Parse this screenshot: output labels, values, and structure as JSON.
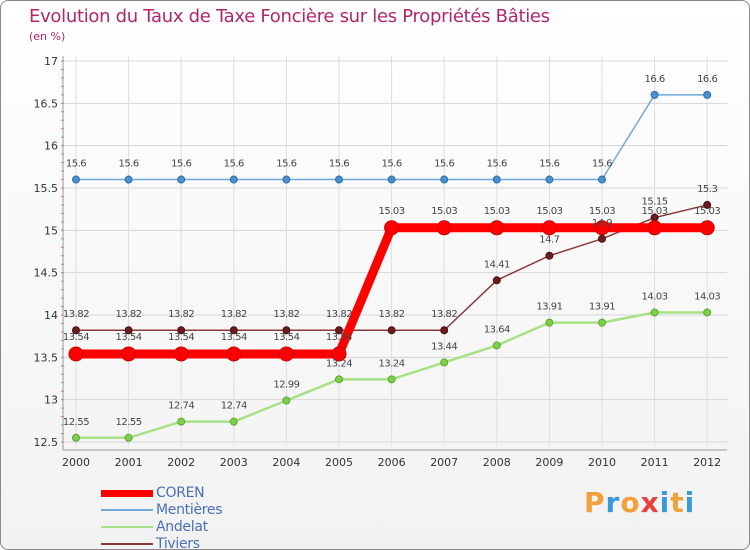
{
  "title": "Evolution du Taux de Taxe Foncière sur les Propriétés Bâties",
  "unit_label": "(en %)",
  "logo_text": "Proxiti",
  "colors": {
    "title": "#b0266e",
    "coren": "#ff0000",
    "mentieres": "#6fa8dc",
    "andelat": "#a8e086",
    "tiviers": "#8b3a3a"
  },
  "chart_data": {
    "type": "line",
    "title": "Evolution du Taux de Taxe Foncière sur les Propriétés Bâties",
    "ylabel": "(en %)",
    "xlabel": "",
    "x": [
      "2000",
      "2001",
      "2002",
      "2003",
      "2004",
      "2005",
      "2006",
      "2007",
      "2008",
      "2009",
      "2010",
      "2011",
      "2012"
    ],
    "ylim": [
      12.5,
      17
    ],
    "yticks": [
      "12.5",
      "13",
      "13.5",
      "14",
      "14.5",
      "15",
      "15.5",
      "16",
      "16.5",
      "17"
    ],
    "grid": true,
    "legend_position": "bottom-left",
    "series": [
      {
        "name": "COREN",
        "values": [
          13.54,
          13.54,
          13.54,
          13.54,
          13.54,
          13.54,
          15.03,
          15.03,
          15.03,
          15.03,
          15.03,
          15.03,
          15.03
        ],
        "labels": [
          "13.54",
          "13.54",
          "13.54",
          "13.54",
          "13.54",
          "13.54",
          "15.03",
          "15.03",
          "15.03",
          "15.03",
          "15.03",
          "15.03",
          "15.03"
        ]
      },
      {
        "name": "Mentières",
        "values": [
          15.6,
          15.6,
          15.6,
          15.6,
          15.6,
          15.6,
          15.6,
          15.6,
          15.6,
          15.6,
          15.6,
          16.6,
          16.6
        ],
        "labels": [
          "15.6",
          "15.6",
          "15.6",
          "15.6",
          "15.6",
          "15.6",
          "15.6",
          "15.6",
          "15.6",
          "15.6",
          "15.6",
          "16.6",
          "16.6"
        ]
      },
      {
        "name": "Andelat",
        "values": [
          12.55,
          12.55,
          12.74,
          12.74,
          12.99,
          13.24,
          13.24,
          13.44,
          13.64,
          13.91,
          13.91,
          14.03,
          14.03
        ],
        "labels": [
          "12.55",
          "12.55",
          "12.74",
          "12.74",
          "12.99",
          "13.24",
          "13.24",
          "13.44",
          "13.64",
          "13.91",
          "13.91",
          "14.03",
          "14.03"
        ]
      },
      {
        "name": "Tiviers",
        "values": [
          13.82,
          13.82,
          13.82,
          13.82,
          13.82,
          13.82,
          13.82,
          13.82,
          14.41,
          14.7,
          14.9,
          15.15,
          15.3
        ],
        "labels": [
          "13.82",
          "13.82",
          "13.82",
          "13.82",
          "13.82",
          "13.82",
          "13.82",
          "13.82",
          "14.41",
          "14.7",
          "14.9",
          "15.15",
          "15.3"
        ]
      }
    ]
  }
}
